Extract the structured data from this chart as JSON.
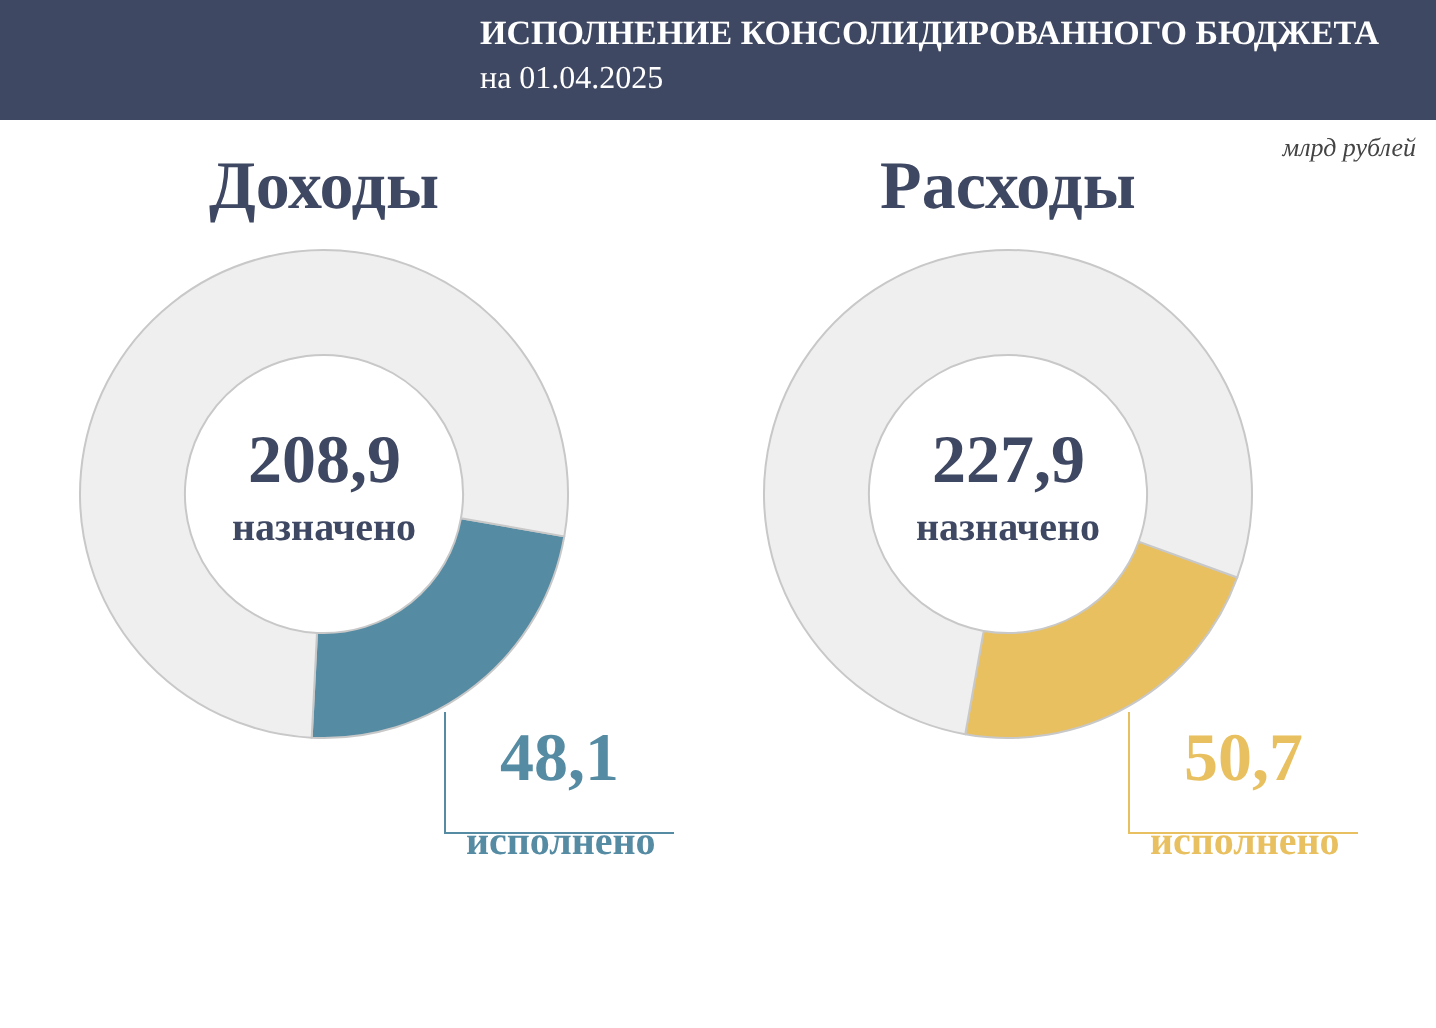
{
  "chart_data": [
    {
      "type": "donut",
      "title": "Доходы",
      "annotations": [
        "ИСПОЛНЕНИЕ КОНСОЛИДИРОВАННОГО БЮДЖЕТА",
        "на 01.04.2025",
        "млрд рублей",
        "208,9",
        "назначено"
      ],
      "categories": [
        "исполнено",
        null
      ],
      "values": [
        48.1,
        160.8
      ],
      "colors": [
        "#558ba3",
        "#efefef"
      ],
      "value_labels": [
        "48,1",
        null
      ],
      "legend": false
    },
    {
      "type": "donut",
      "title": "Расходы",
      "annotations": [
        "227,9",
        "назначено"
      ],
      "categories": [
        "исполнено",
        null
      ],
      "values": [
        50.7,
        177.2
      ],
      "colors": [
        "#e9c060",
        "#efefef"
      ],
      "value_labels": [
        "50,7",
        null
      ],
      "legend": false
    }
  ]
}
